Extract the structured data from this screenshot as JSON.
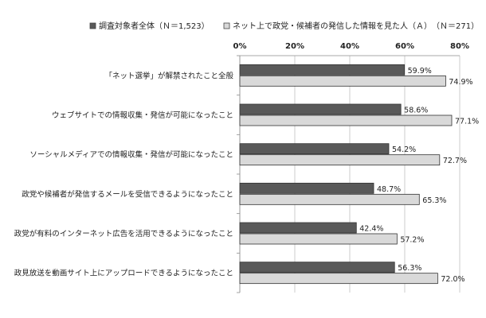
{
  "chart_data": {
    "type": "bar",
    "orientation": "horizontal",
    "categories": [
      "「ネット選挙」が解禁されたこと全般",
      "ウェブサイトでの情報収集・発信が可能になったこと",
      "ソーシャルメディアでの情報収集・発信が可能になったこと",
      "政党や候補者が発信するメールを受信できるようになったこと",
      "政党が有料のインターネット広告を活用できるようになったこと",
      "政見放送を動画サイト上にアップロードできるようになったこと"
    ],
    "series": [
      {
        "name": "調査対象者全体（Ｎ＝1,523）",
        "color": "#595959",
        "values": [
          59.9,
          58.6,
          54.2,
          48.7,
          42.4,
          56.3
        ],
        "labels": [
          "59.9%",
          "58.6%",
          "54.2%",
          "48.7%",
          "42.4%",
          "56.3%"
        ]
      },
      {
        "name": "ネット上で政党・候補者の発信した情報を見た人（Ａ）　（Ｎ＝271）",
        "color": "#d9d9d9",
        "values": [
          74.9,
          77.1,
          72.7,
          65.3,
          57.2,
          72.0
        ],
        "labels": [
          "74.9%",
          "77.1%",
          "72.7%",
          "65.3%",
          "57.2%",
          "72.0%"
        ]
      }
    ],
    "xlim": [
      0,
      80
    ],
    "ticks": [
      0,
      20,
      40,
      60,
      80
    ],
    "tick_labels": [
      "0%",
      "20%",
      "40%",
      "60%",
      "80%"
    ],
    "grid": true,
    "legend_position": "top"
  }
}
